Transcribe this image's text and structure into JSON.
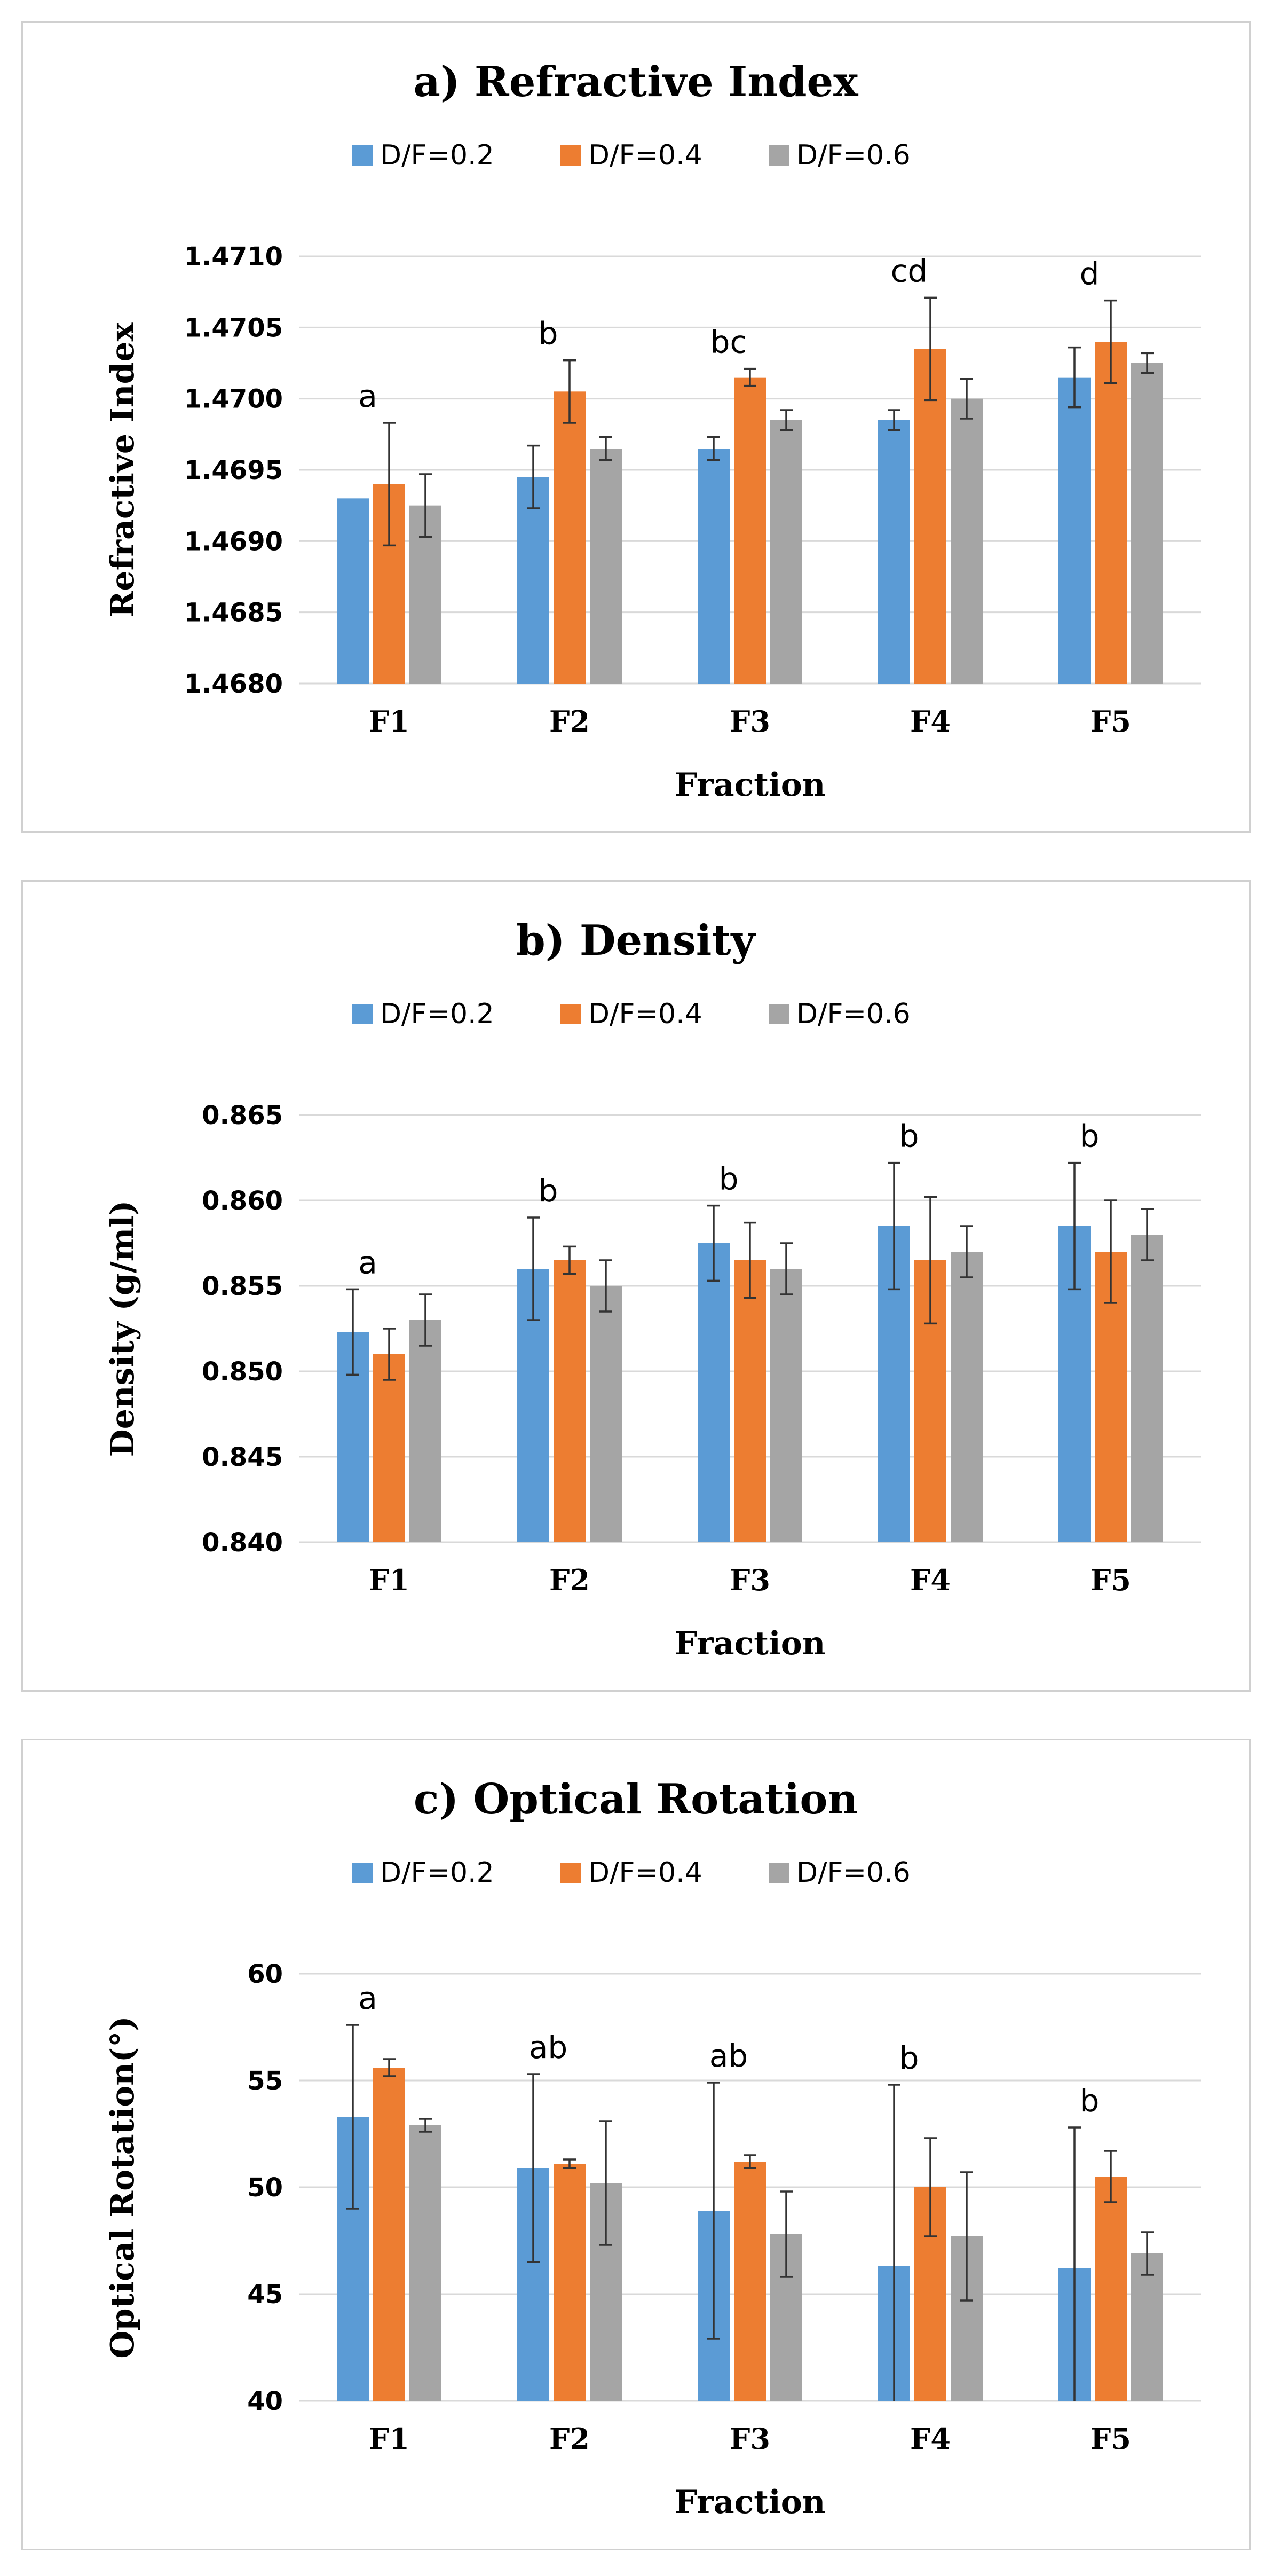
{
  "chart_data": [
    {
      "type": "bar",
      "title": "a) Refractive Index",
      "xlabel": "Fraction",
      "ylabel": "Refractive Index",
      "categories": [
        "F1",
        "F2",
        "F3",
        "F4",
        "F5"
      ],
      "ylim": [
        1.468,
        1.471
      ],
      "yticks": [
        1.468,
        1.4685,
        1.469,
        1.4695,
        1.47,
        1.4705,
        1.471
      ],
      "ytick_labels": [
        "1.4680",
        "1.4685",
        "1.4690",
        "1.4695",
        "1.4700",
        "1.4705",
        "1.4710"
      ],
      "series": [
        {
          "name": "D/F=0.2",
          "color": "#5B9BD5",
          "values": [
            1.4693,
            1.46945,
            1.46965,
            1.46985,
            1.47015
          ],
          "errors": [
            0.0,
            0.00022,
            8e-05,
            7e-05,
            0.00021
          ]
        },
        {
          "name": "D/F=0.4",
          "color": "#ED7D31",
          "values": [
            1.4694,
            1.47005,
            1.47015,
            1.47035,
            1.4704
          ],
          "errors": [
            0.00043,
            0.00022,
            6e-05,
            0.00036,
            0.00029
          ]
        },
        {
          "name": "D/F=0.6",
          "color": "#A5A5A5",
          "values": [
            1.46925,
            1.46965,
            1.46985,
            1.47,
            1.47025
          ],
          "errors": [
            0.00022,
            8e-05,
            7e-05,
            0.00014,
            7e-05
          ]
        }
      ],
      "significance_letters": [
        "a",
        "b",
        "bc",
        "cd",
        "d"
      ]
    },
    {
      "type": "bar",
      "title": "b) Density",
      "xlabel": "Fraction",
      "ylabel": "Density (g/ml)",
      "categories": [
        "F1",
        "F2",
        "F3",
        "F4",
        "F5"
      ],
      "ylim": [
        0.84,
        0.865
      ],
      "yticks": [
        0.84,
        0.845,
        0.85,
        0.855,
        0.86,
        0.865
      ],
      "ytick_labels": [
        "0.840",
        "0.845",
        "0.850",
        "0.855",
        "0.860",
        "0.865"
      ],
      "series": [
        {
          "name": "D/F=0.2",
          "color": "#5B9BD5",
          "values": [
            0.8523,
            0.856,
            0.8575,
            0.8585,
            0.8585
          ],
          "errors": [
            0.0025,
            0.003,
            0.0022,
            0.0037,
            0.0037
          ]
        },
        {
          "name": "D/F=0.4",
          "color": "#ED7D31",
          "values": [
            0.851,
            0.8565,
            0.8565,
            0.8565,
            0.857
          ],
          "errors": [
            0.0015,
            0.0008,
            0.0022,
            0.0037,
            0.003
          ]
        },
        {
          "name": "D/F=0.6",
          "color": "#A5A5A5",
          "values": [
            0.853,
            0.855,
            0.856,
            0.857,
            0.858
          ],
          "errors": [
            0.0015,
            0.0015,
            0.0015,
            0.0015,
            0.0015
          ]
        }
      ],
      "significance_letters": [
        "a",
        "b",
        "b",
        "b",
        "b"
      ]
    },
    {
      "type": "bar",
      "title": "c) Optical Rotation",
      "xlabel": "Fraction",
      "ylabel": "Optical Rotation(°)",
      "categories": [
        "F1",
        "F2",
        "F3",
        "F4",
        "F5"
      ],
      "ylim": [
        40,
        60
      ],
      "yticks": [
        40,
        45,
        50,
        55,
        60
      ],
      "ytick_labels": [
        "40",
        "45",
        "50",
        "55",
        "60"
      ],
      "series": [
        {
          "name": "D/F=0.2",
          "color": "#5B9BD5",
          "values": [
            53.3,
            50.9,
            48.9,
            46.3,
            46.2
          ],
          "errors": [
            4.3,
            4.4,
            6.0,
            8.5,
            6.6
          ]
        },
        {
          "name": "D/F=0.4",
          "color": "#ED7D31",
          "values": [
            55.6,
            51.1,
            51.2,
            50.0,
            50.5
          ],
          "errors": [
            0.4,
            0.2,
            0.3,
            2.3,
            1.2
          ]
        },
        {
          "name": "D/F=0.6",
          "color": "#A5A5A5",
          "values": [
            52.9,
            50.2,
            47.8,
            47.7,
            46.9
          ],
          "errors": [
            0.3,
            2.9,
            2.0,
            3.0,
            1.0
          ]
        }
      ],
      "significance_letters": [
        "a",
        "ab",
        "ab",
        "b",
        "b"
      ]
    }
  ]
}
